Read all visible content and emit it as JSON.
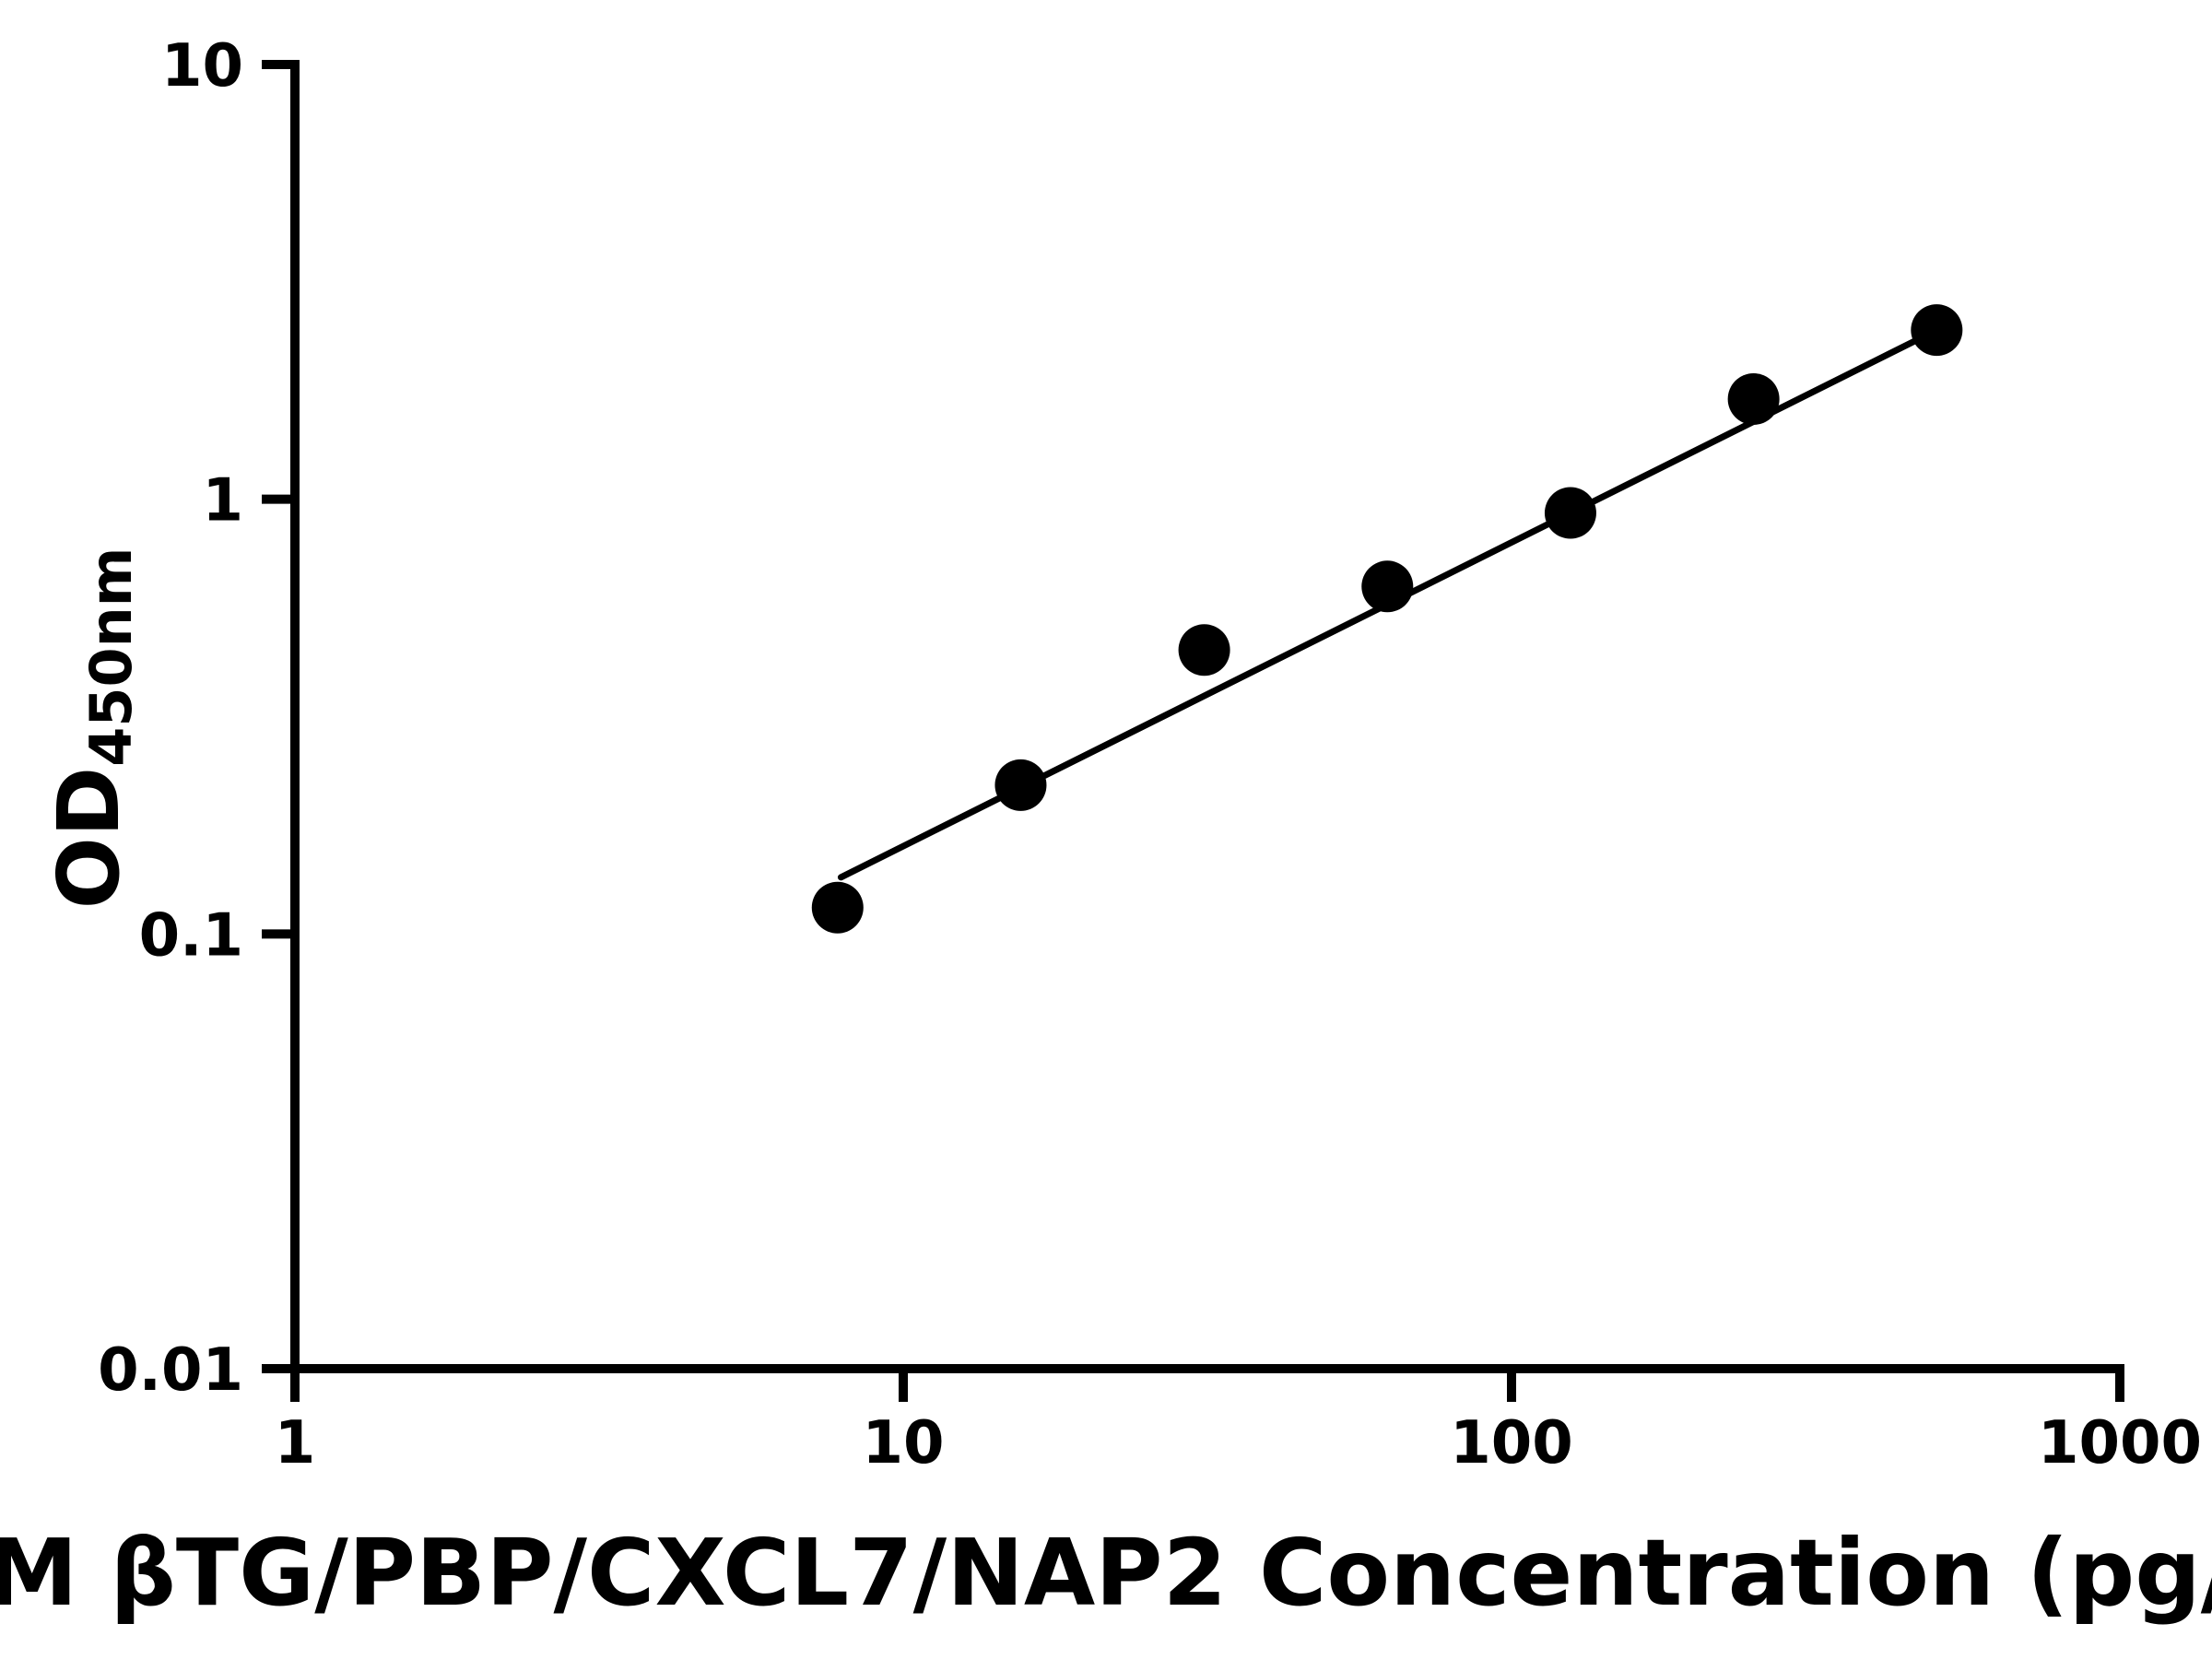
{
  "chart_data": {
    "type": "scatter",
    "title": "M βTG/PBP/CXCL7/NAP2 Concentration (pg/",
    "ylabel_main": "OD",
    "ylabel_sub": "450nm",
    "x_scale": "log",
    "y_scale": "log",
    "xlim": [
      1,
      1000
    ],
    "ylim": [
      0.01,
      10
    ],
    "grid": false,
    "legend": "none",
    "x_ticks": [
      {
        "value": 1,
        "label": "1"
      },
      {
        "value": 10,
        "label": "10"
      },
      {
        "value": 100,
        "label": "100"
      },
      {
        "value": 1000,
        "label": "1000"
      }
    ],
    "y_ticks": [
      {
        "value": 10,
        "label": "10"
      },
      {
        "value": 1,
        "label": "1"
      },
      {
        "value": 0.1,
        "label": "0.1"
      },
      {
        "value": 0.01,
        "label": "0.01"
      }
    ],
    "points": [
      {
        "x": 7.8,
        "y": 0.115
      },
      {
        "x": 15.6,
        "y": 0.22
      },
      {
        "x": 31.25,
        "y": 0.45
      },
      {
        "x": 62.5,
        "y": 0.63
      },
      {
        "x": 125,
        "y": 0.93
      },
      {
        "x": 250,
        "y": 1.7
      },
      {
        "x": 500,
        "y": 2.45
      }
    ],
    "trend_line": {
      "x1": 7.9,
      "y1": 0.135,
      "x2": 500,
      "y2": 2.45
    },
    "colors": {
      "axis": "#000000",
      "marker": "#000000",
      "line": "#000000",
      "background": "#ffffff"
    }
  }
}
